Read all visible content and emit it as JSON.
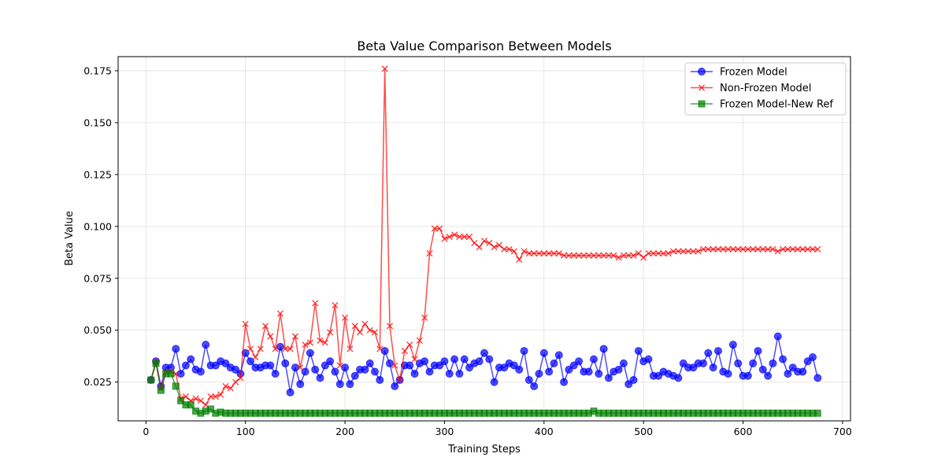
{
  "chart_data": {
    "type": "line",
    "title": "Beta Value Comparison Between Models",
    "xlabel": "Training Steps",
    "ylabel": "Beta Value",
    "xlim": [
      -28,
      708
    ],
    "ylim": [
      0.0063,
      0.1818
    ],
    "xticks": [
      0,
      100,
      200,
      300,
      400,
      500,
      600,
      700
    ],
    "yticks": [
      0.025,
      0.05,
      0.075,
      0.1,
      0.125,
      0.15,
      0.175
    ],
    "ytick_labels": [
      "0.025",
      "0.050",
      "0.075",
      "0.100",
      "0.125",
      "0.150",
      "0.175"
    ],
    "grid": true,
    "legend_position": "top-right",
    "series": [
      {
        "name": "Frozen Model",
        "color": "#0000ff",
        "marker": "circle",
        "x": [
          5,
          10,
          15,
          20,
          25,
          30,
          35,
          40,
          45,
          50,
          55,
          60,
          65,
          70,
          75,
          80,
          85,
          90,
          95,
          100,
          105,
          110,
          115,
          120,
          125,
          130,
          135,
          140,
          145,
          150,
          155,
          160,
          165,
          170,
          175,
          180,
          185,
          190,
          195,
          200,
          205,
          210,
          215,
          220,
          225,
          230,
          235,
          240,
          245,
          250,
          255,
          260,
          265,
          270,
          275,
          280,
          285,
          290,
          295,
          300,
          305,
          310,
          315,
          320,
          325,
          330,
          335,
          340,
          345,
          350,
          355,
          360,
          365,
          370,
          375,
          380,
          385,
          390,
          395,
          400,
          405,
          410,
          415,
          420,
          425,
          430,
          435,
          440,
          445,
          450,
          455,
          460,
          465,
          470,
          475,
          480,
          485,
          490,
          495,
          500,
          505,
          510,
          515,
          520,
          525,
          530,
          535,
          540,
          545,
          550,
          555,
          560,
          565,
          570,
          575,
          580,
          585,
          590,
          595,
          600,
          605,
          610,
          615,
          620,
          625,
          630,
          635,
          640,
          645,
          650,
          655,
          660,
          665,
          670,
          675
        ],
        "y": [
          0.026,
          0.035,
          0.023,
          0.032,
          0.032,
          0.041,
          0.029,
          0.033,
          0.036,
          0.031,
          0.03,
          0.043,
          0.033,
          0.033,
          0.035,
          0.034,
          0.032,
          0.031,
          0.029,
          0.039,
          0.035,
          0.032,
          0.032,
          0.033,
          0.033,
          0.029,
          0.042,
          0.034,
          0.02,
          0.032,
          0.024,
          0.03,
          0.039,
          0.031,
          0.027,
          0.033,
          0.035,
          0.03,
          0.024,
          0.032,
          0.024,
          0.028,
          0.031,
          0.031,
          0.034,
          0.03,
          0.026,
          0.04,
          0.034,
          0.023,
          0.026,
          0.033,
          0.033,
          0.029,
          0.034,
          0.035,
          0.03,
          0.033,
          0.033,
          0.035,
          0.029,
          0.036,
          0.029,
          0.036,
          0.032,
          0.034,
          0.035,
          0.039,
          0.036,
          0.025,
          0.032,
          0.032,
          0.034,
          0.033,
          0.031,
          0.04,
          0.026,
          0.023,
          0.029,
          0.039,
          0.03,
          0.034,
          0.038,
          0.025,
          0.031,
          0.033,
          0.035,
          0.03,
          0.03,
          0.036,
          0.029,
          0.041,
          0.027,
          0.03,
          0.031,
          0.034,
          0.024,
          0.026,
          0.04,
          0.035,
          0.036,
          0.028,
          0.028,
          0.03,
          0.029,
          0.028,
          0.027,
          0.034,
          0.032,
          0.032,
          0.034,
          0.034,
          0.039,
          0.032,
          0.04,
          0.03,
          0.029,
          0.043,
          0.034,
          0.028,
          0.028,
          0.034,
          0.04,
          0.031,
          0.028,
          0.034,
          0.047,
          0.036,
          0.029,
          0.032,
          0.03,
          0.03,
          0.035,
          0.037,
          0.027
        ]
      },
      {
        "name": "Non-Frozen Model",
        "color": "#ff0000",
        "marker": "x",
        "x": [
          5,
          10,
          15,
          20,
          25,
          30,
          35,
          40,
          45,
          50,
          55,
          60,
          65,
          70,
          75,
          80,
          85,
          90,
          95,
          100,
          105,
          110,
          115,
          120,
          125,
          130,
          135,
          140,
          145,
          150,
          155,
          160,
          165,
          170,
          175,
          180,
          185,
          190,
          195,
          200,
          205,
          210,
          215,
          220,
          225,
          230,
          235,
          240,
          245,
          250,
          255,
          260,
          265,
          270,
          275,
          280,
          285,
          290,
          295,
          300,
          305,
          310,
          315,
          320,
          325,
          330,
          335,
          340,
          345,
          350,
          355,
          360,
          365,
          370,
          375,
          380,
          385,
          390,
          395,
          400,
          405,
          410,
          415,
          420,
          425,
          430,
          435,
          440,
          445,
          450,
          455,
          460,
          465,
          470,
          475,
          480,
          485,
          490,
          495,
          500,
          505,
          510,
          515,
          520,
          525,
          530,
          535,
          540,
          545,
          550,
          555,
          560,
          565,
          570,
          575,
          580,
          585,
          590,
          595,
          600,
          605,
          610,
          615,
          620,
          625,
          630,
          635,
          640,
          645,
          650,
          655,
          660,
          665,
          670,
          675
        ],
        "y": [
          0.026,
          0.035,
          0.022,
          0.03,
          0.03,
          0.029,
          0.017,
          0.018,
          0.016,
          0.017,
          0.016,
          0.014,
          0.018,
          0.018,
          0.019,
          0.023,
          0.022,
          0.025,
          0.027,
          0.053,
          0.041,
          0.037,
          0.041,
          0.052,
          0.047,
          0.041,
          0.058,
          0.041,
          0.041,
          0.047,
          0.032,
          0.043,
          0.044,
          0.063,
          0.045,
          0.044,
          0.049,
          0.062,
          0.033,
          0.056,
          0.041,
          0.052,
          0.049,
          0.053,
          0.05,
          0.049,
          0.041,
          0.176,
          0.052,
          0.033,
          0.026,
          0.04,
          0.043,
          0.036,
          0.045,
          0.056,
          0.087,
          0.099,
          0.099,
          0.094,
          0.095,
          0.096,
          0.095,
          0.095,
          0.095,
          0.092,
          0.09,
          0.093,
          0.092,
          0.09,
          0.091,
          0.089,
          0.089,
          0.088,
          0.084,
          0.088,
          0.087,
          0.087,
          0.087,
          0.087,
          0.087,
          0.087,
          0.087,
          0.086,
          0.086,
          0.086,
          0.086,
          0.086,
          0.086,
          0.086,
          0.086,
          0.086,
          0.086,
          0.086,
          0.085,
          0.086,
          0.086,
          0.086,
          0.087,
          0.085,
          0.087,
          0.087,
          0.087,
          0.087,
          0.087,
          0.088,
          0.088,
          0.088,
          0.088,
          0.088,
          0.088,
          0.089,
          0.089,
          0.089,
          0.089,
          0.089,
          0.089,
          0.089,
          0.089,
          0.089,
          0.089,
          0.089,
          0.089,
          0.089,
          0.089,
          0.089,
          0.088,
          0.089,
          0.089,
          0.089,
          0.089,
          0.089,
          0.089,
          0.089,
          0.089
        ]
      },
      {
        "name": "Frozen Model-New Ref",
        "color": "#008000",
        "marker": "square",
        "x": [
          5,
          10,
          15,
          20,
          25,
          30,
          35,
          40,
          45,
          50,
          55,
          60,
          65,
          70,
          75,
          80,
          85,
          90,
          95,
          100,
          105,
          110,
          115,
          120,
          125,
          130,
          135,
          140,
          145,
          150,
          155,
          160,
          165,
          170,
          175,
          180,
          185,
          190,
          195,
          200,
          205,
          210,
          215,
          220,
          225,
          230,
          235,
          240,
          245,
          250,
          255,
          260,
          265,
          270,
          275,
          280,
          285,
          290,
          295,
          300,
          305,
          310,
          315,
          320,
          325,
          330,
          335,
          340,
          345,
          350,
          355,
          360,
          365,
          370,
          375,
          380,
          385,
          390,
          395,
          400,
          405,
          410,
          415,
          420,
          425,
          430,
          435,
          440,
          445,
          450,
          455,
          460,
          465,
          470,
          475,
          480,
          485,
          490,
          495,
          500,
          505,
          510,
          515,
          520,
          525,
          530,
          535,
          540,
          545,
          550,
          555,
          560,
          565,
          570,
          575,
          580,
          585,
          590,
          595,
          600,
          605,
          610,
          615,
          620,
          625,
          630,
          635,
          640,
          645,
          650,
          655,
          660,
          665,
          670,
          675
        ],
        "y": [
          0.026,
          0.034,
          0.021,
          0.029,
          0.029,
          0.023,
          0.016,
          0.014,
          0.014,
          0.011,
          0.01,
          0.011,
          0.012,
          0.01,
          0.0105,
          0.01,
          0.01,
          0.01,
          0.01,
          0.01,
          0.01,
          0.01,
          0.01,
          0.01,
          0.01,
          0.01,
          0.01,
          0.01,
          0.01,
          0.01,
          0.01,
          0.01,
          0.01,
          0.01,
          0.01,
          0.01,
          0.01,
          0.01,
          0.01,
          0.01,
          0.01,
          0.01,
          0.01,
          0.01,
          0.01,
          0.01,
          0.01,
          0.01,
          0.01,
          0.01,
          0.01,
          0.01,
          0.01,
          0.01,
          0.01,
          0.01,
          0.01,
          0.01,
          0.01,
          0.01,
          0.01,
          0.01,
          0.01,
          0.01,
          0.01,
          0.01,
          0.01,
          0.01,
          0.01,
          0.01,
          0.01,
          0.01,
          0.01,
          0.01,
          0.01,
          0.01,
          0.01,
          0.01,
          0.01,
          0.01,
          0.01,
          0.01,
          0.01,
          0.01,
          0.01,
          0.01,
          0.01,
          0.01,
          0.01,
          0.011,
          0.01,
          0.01,
          0.01,
          0.01,
          0.01,
          0.01,
          0.01,
          0.01,
          0.01,
          0.01,
          0.01,
          0.01,
          0.01,
          0.01,
          0.01,
          0.01,
          0.01,
          0.01,
          0.01,
          0.01,
          0.01,
          0.01,
          0.01,
          0.01,
          0.01,
          0.01,
          0.01,
          0.01,
          0.01,
          0.01,
          0.01,
          0.01,
          0.01,
          0.01,
          0.01,
          0.01,
          0.01,
          0.01,
          0.01,
          0.01,
          0.01,
          0.01,
          0.01,
          0.01,
          0.01
        ]
      }
    ]
  }
}
